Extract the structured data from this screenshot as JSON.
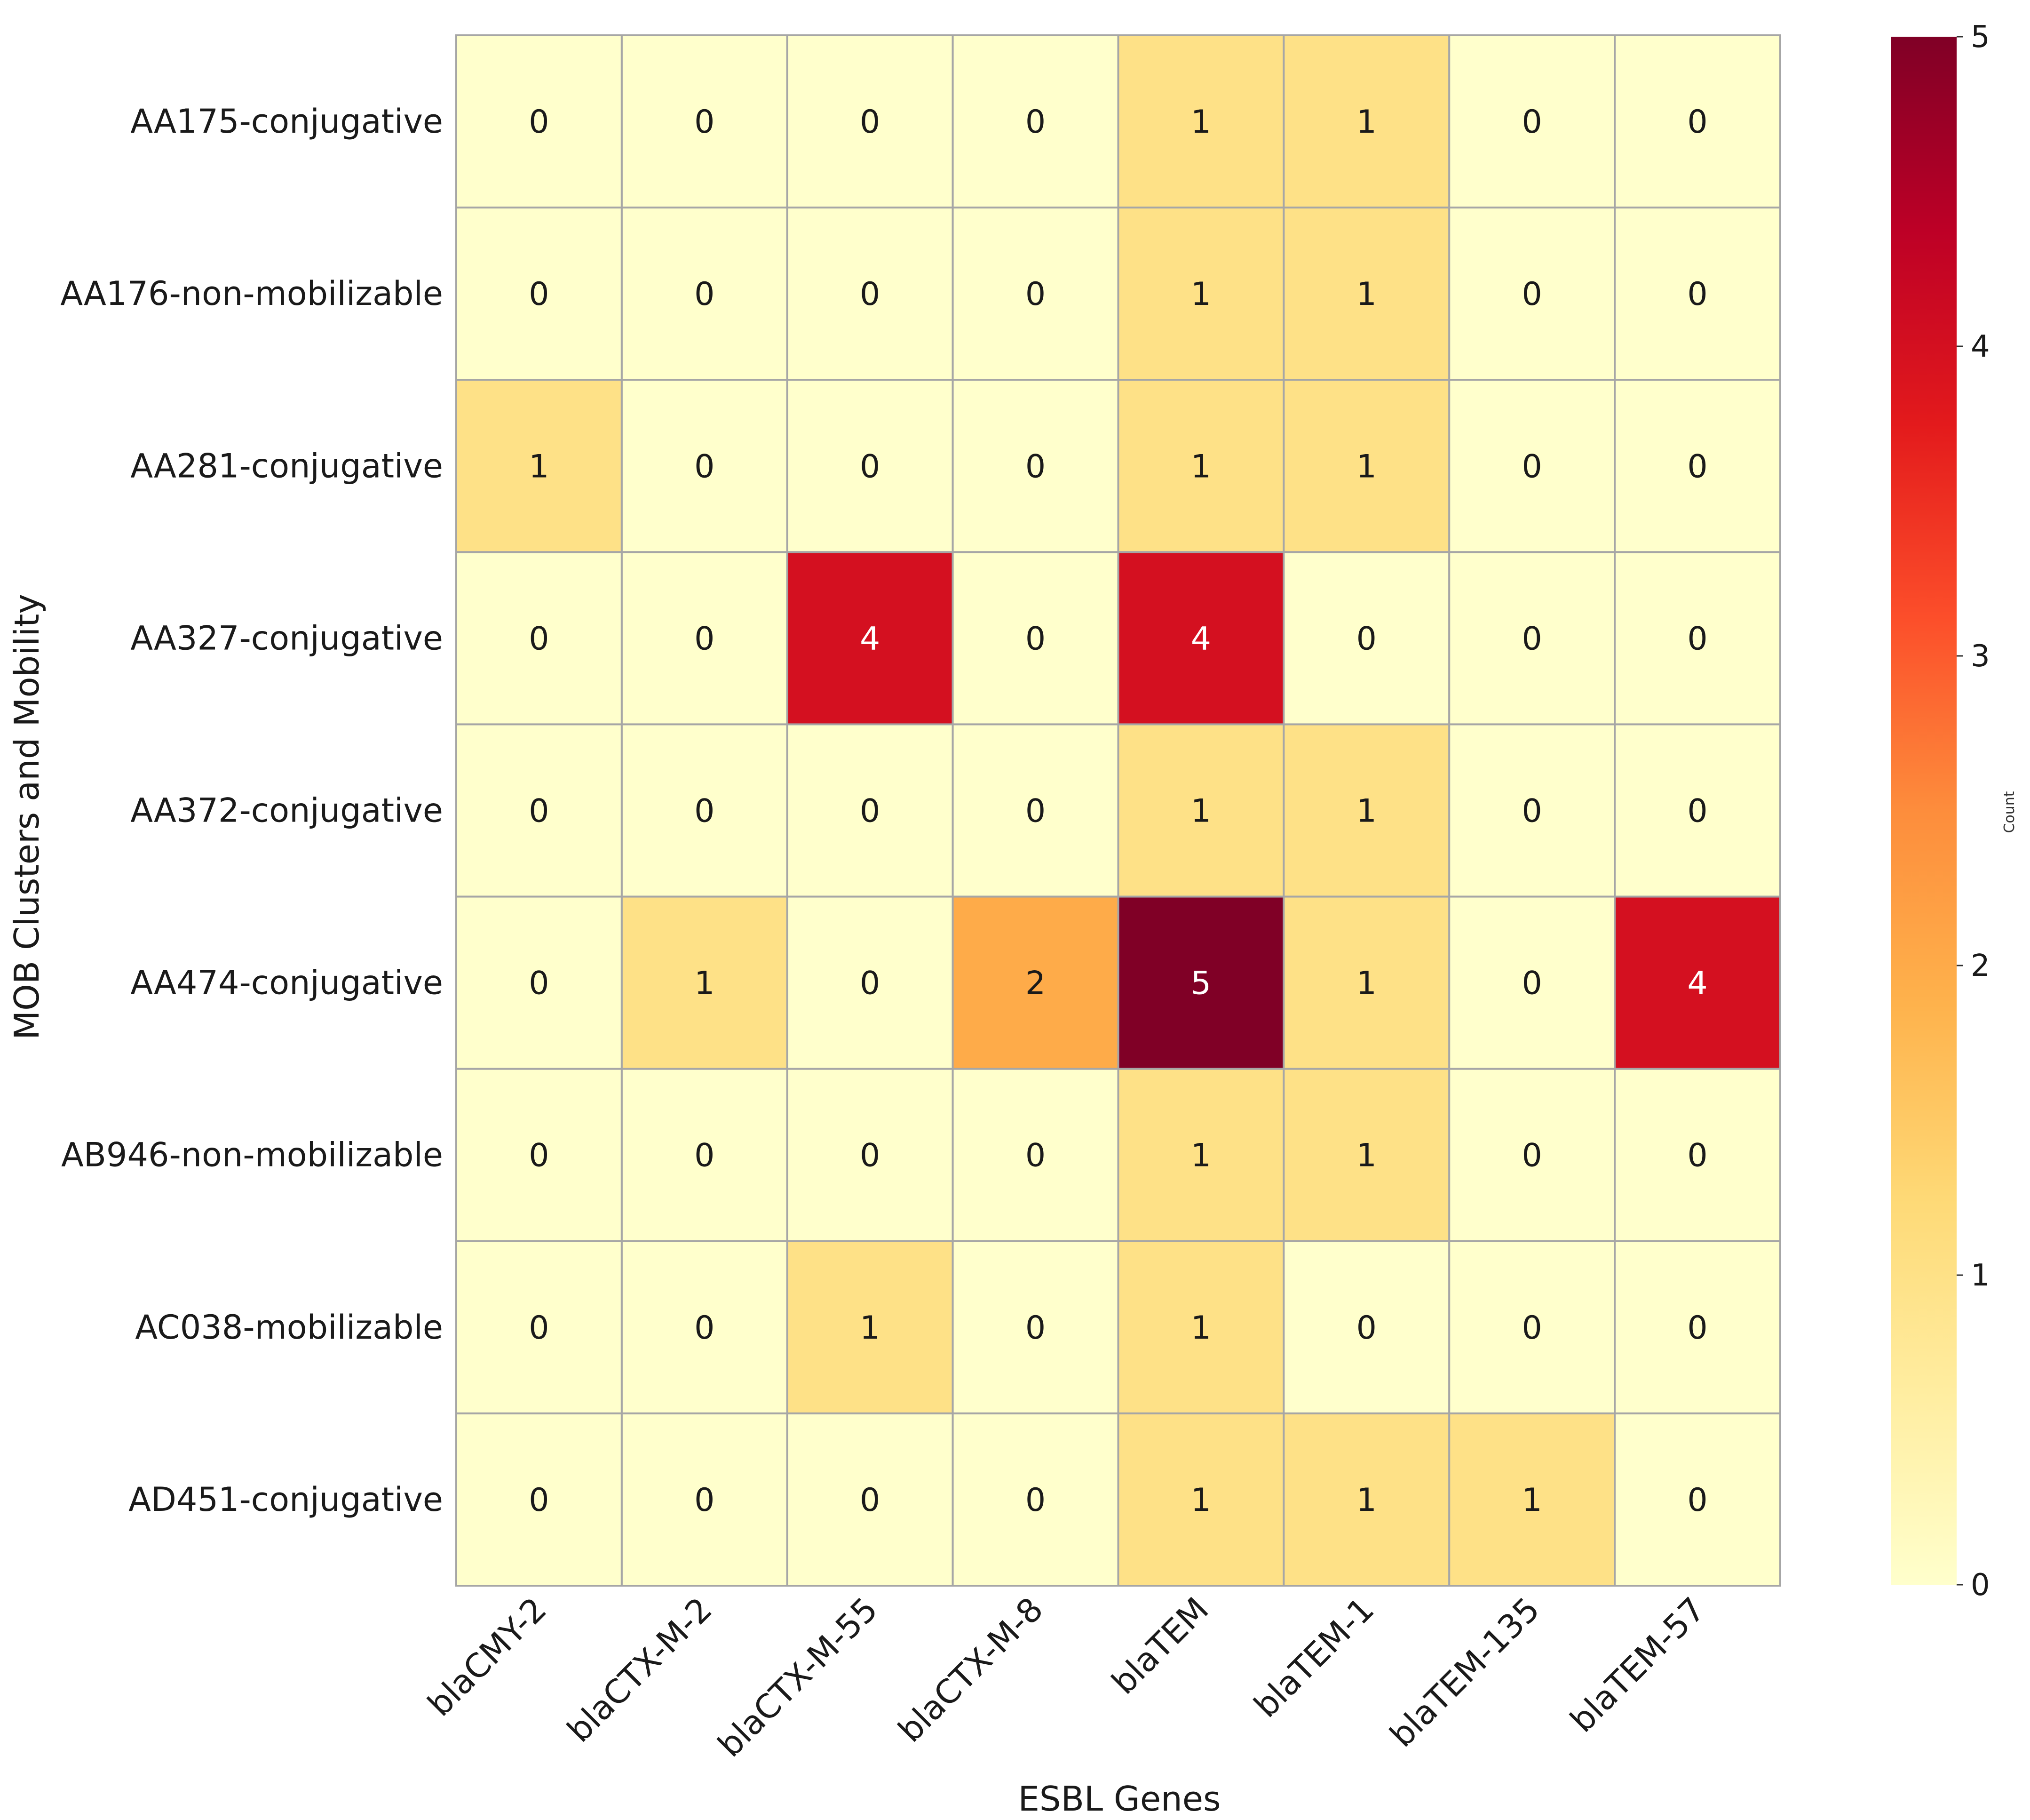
{
  "chart_data": {
    "type": "heatmap",
    "title": "",
    "xlabel": "ESBL Genes",
    "ylabel": "MOB Clusters and Mobility",
    "x_categories": [
      "blaCMY-2",
      "blaCTX-M-2",
      "blaCTX-M-55",
      "blaCTX-M-8",
      "blaTEM",
      "blaTEM-1",
      "blaTEM-135",
      "blaTEM-57"
    ],
    "y_categories": [
      "AA175-conjugative",
      "AA176-non-mobilizable",
      "AA281-conjugative",
      "AA327-conjugative",
      "AA372-conjugative",
      "AA474-conjugative",
      "AB946-non-mobilizable",
      "AC038-mobilizable",
      "AD451-conjugative"
    ],
    "values": [
      [
        0,
        0,
        0,
        0,
        1,
        1,
        0,
        0
      ],
      [
        0,
        0,
        0,
        0,
        1,
        1,
        0,
        0
      ],
      [
        1,
        0,
        0,
        0,
        1,
        1,
        0,
        0
      ],
      [
        0,
        0,
        4,
        0,
        4,
        0,
        0,
        0
      ],
      [
        0,
        0,
        0,
        0,
        1,
        1,
        0,
        0
      ],
      [
        0,
        1,
        0,
        2,
        5,
        1,
        0,
        4
      ],
      [
        0,
        0,
        0,
        0,
        1,
        1,
        0,
        0
      ],
      [
        0,
        0,
        1,
        0,
        1,
        0,
        0,
        0
      ],
      [
        0,
        0,
        0,
        0,
        1,
        1,
        1,
        0
      ]
    ],
    "colorbar": {
      "label": "Count",
      "range": [
        0,
        5
      ],
      "ticks": [
        "0",
        "1",
        "2",
        "3",
        "4",
        "5"
      ],
      "colormap": "YlOrRd",
      "colors": [
        "#ffffcc",
        "#ffeda0",
        "#fed976",
        "#feb24c",
        "#fd8d3c",
        "#fc4e2a",
        "#e31a1c",
        "#bd0026",
        "#800026"
      ]
    },
    "grid": true,
    "annotate": true,
    "grid_color": "#a6a6a6"
  }
}
